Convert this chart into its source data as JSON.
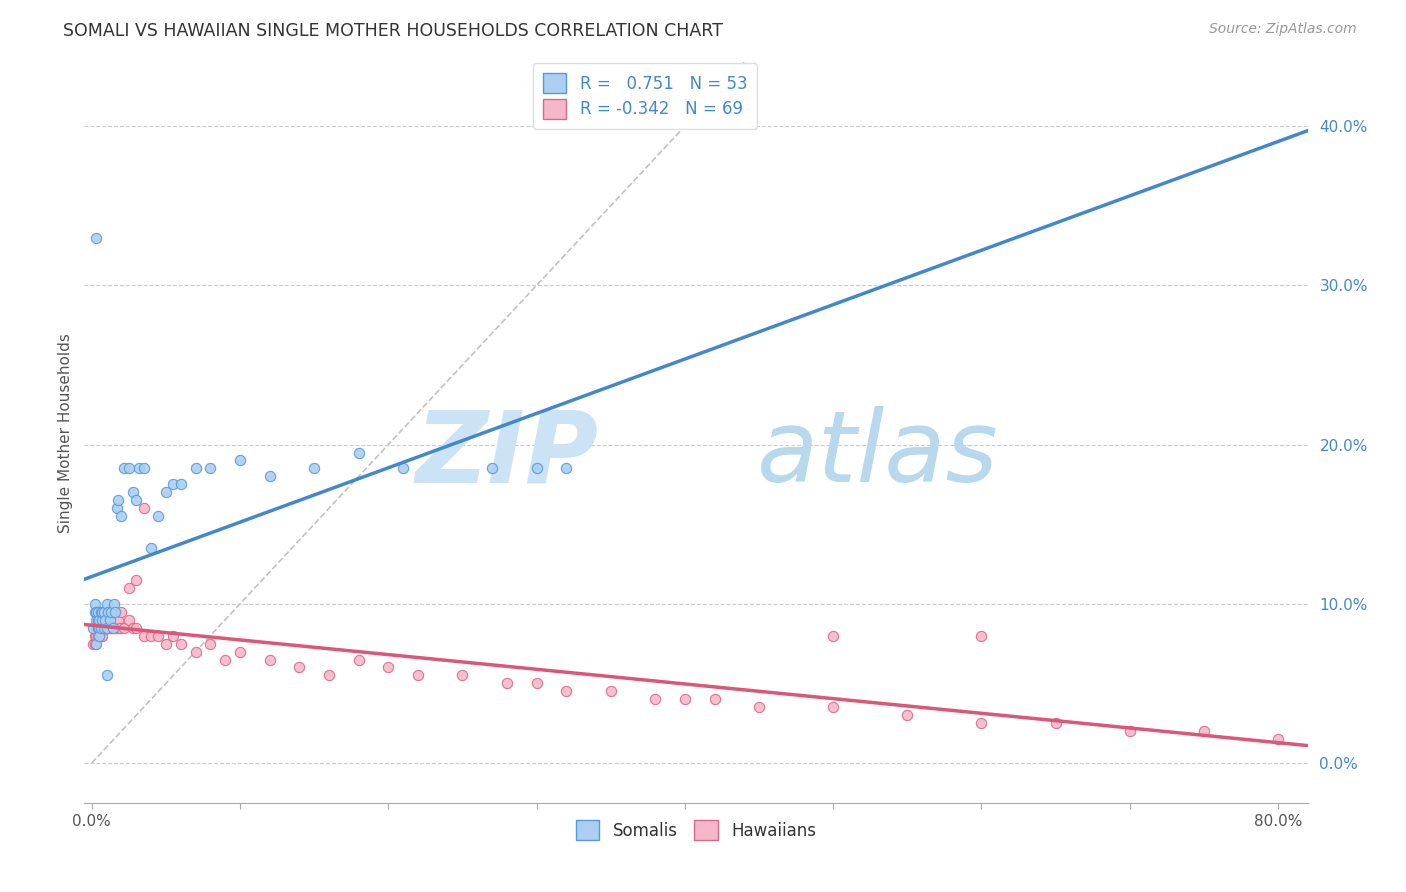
{
  "title": "SOMALI VS HAWAIIAN SINGLE MOTHER HOUSEHOLDS CORRELATION CHART",
  "source": "Source: ZipAtlas.com",
  "ylabel": "Single Mother Households",
  "xlim": [
    -0.005,
    0.82
  ],
  "ylim": [
    -0.025,
    0.44
  ],
  "somali_color": "#aacff0",
  "somali_edge_color": "#5599dd",
  "hawaiian_color": "#f5b8ca",
  "hawaiian_edge_color": "#dd6688",
  "somali_R": 0.751,
  "somali_N": 53,
  "hawaiian_R": -0.342,
  "hawaiian_N": 69,
  "background_color": "#ffffff",
  "grid_color": "#cccccc",
  "watermark_zip_color": "#cce3f5",
  "watermark_atlas_color": "#b8d8ee",
  "diagonal_line_color": "#bbbbbb",
  "somali_line_color": "#4488cc",
  "hawaiian_line_color": "#dd5577",
  "legend_text_color": "#4488cc",
  "title_color": "#333333",
  "source_color": "#999999",
  "right_tick_color": "#4488cc",
  "somali_x": [
    0.001,
    0.002,
    0.002,
    0.003,
    0.003,
    0.003,
    0.004,
    0.004,
    0.004,
    0.005,
    0.005,
    0.005,
    0.006,
    0.006,
    0.007,
    0.007,
    0.008,
    0.008,
    0.009,
    0.01,
    0.01,
    0.011,
    0.012,
    0.013,
    0.014,
    0.015,
    0.016,
    0.017,
    0.018,
    0.02,
    0.022,
    0.025,
    0.028,
    0.03,
    0.032,
    0.035,
    0.04,
    0.045,
    0.05,
    0.055,
    0.06,
    0.07,
    0.08,
    0.1,
    0.12,
    0.15,
    0.18,
    0.21,
    0.27,
    0.3,
    0.32,
    0.01,
    0.003
  ],
  "somali_y": [
    0.085,
    0.095,
    0.1,
    0.09,
    0.095,
    0.075,
    0.085,
    0.09,
    0.095,
    0.085,
    0.09,
    0.08,
    0.085,
    0.095,
    0.09,
    0.095,
    0.095,
    0.085,
    0.09,
    0.085,
    0.1,
    0.095,
    0.09,
    0.095,
    0.085,
    0.1,
    0.095,
    0.16,
    0.165,
    0.155,
    0.185,
    0.185,
    0.17,
    0.165,
    0.185,
    0.185,
    0.135,
    0.155,
    0.17,
    0.175,
    0.175,
    0.185,
    0.185,
    0.19,
    0.18,
    0.185,
    0.195,
    0.185,
    0.185,
    0.185,
    0.185,
    0.055,
    0.33
  ],
  "hawaiian_x": [
    0.001,
    0.002,
    0.002,
    0.003,
    0.003,
    0.004,
    0.004,
    0.005,
    0.005,
    0.006,
    0.006,
    0.007,
    0.007,
    0.008,
    0.008,
    0.009,
    0.01,
    0.01,
    0.011,
    0.012,
    0.013,
    0.014,
    0.015,
    0.016,
    0.017,
    0.018,
    0.019,
    0.02,
    0.022,
    0.025,
    0.028,
    0.03,
    0.035,
    0.04,
    0.045,
    0.05,
    0.055,
    0.06,
    0.07,
    0.08,
    0.09,
    0.1,
    0.12,
    0.14,
    0.16,
    0.18,
    0.2,
    0.22,
    0.25,
    0.28,
    0.3,
    0.32,
    0.35,
    0.38,
    0.4,
    0.42,
    0.45,
    0.5,
    0.55,
    0.6,
    0.65,
    0.7,
    0.75,
    0.8,
    0.025,
    0.03,
    0.035,
    0.5,
    0.6
  ],
  "hawaiian_y": [
    0.075,
    0.08,
    0.075,
    0.085,
    0.08,
    0.08,
    0.085,
    0.09,
    0.085,
    0.08,
    0.085,
    0.08,
    0.09,
    0.085,
    0.09,
    0.085,
    0.085,
    0.09,
    0.085,
    0.09,
    0.085,
    0.095,
    0.095,
    0.085,
    0.085,
    0.09,
    0.085,
    0.095,
    0.085,
    0.09,
    0.085,
    0.085,
    0.08,
    0.08,
    0.08,
    0.075,
    0.08,
    0.075,
    0.07,
    0.075,
    0.065,
    0.07,
    0.065,
    0.06,
    0.055,
    0.065,
    0.06,
    0.055,
    0.055,
    0.05,
    0.05,
    0.045,
    0.045,
    0.04,
    0.04,
    0.04,
    0.035,
    0.035,
    0.03,
    0.025,
    0.025,
    0.02,
    0.02,
    0.015,
    0.11,
    0.115,
    0.16,
    0.08,
    0.08
  ]
}
